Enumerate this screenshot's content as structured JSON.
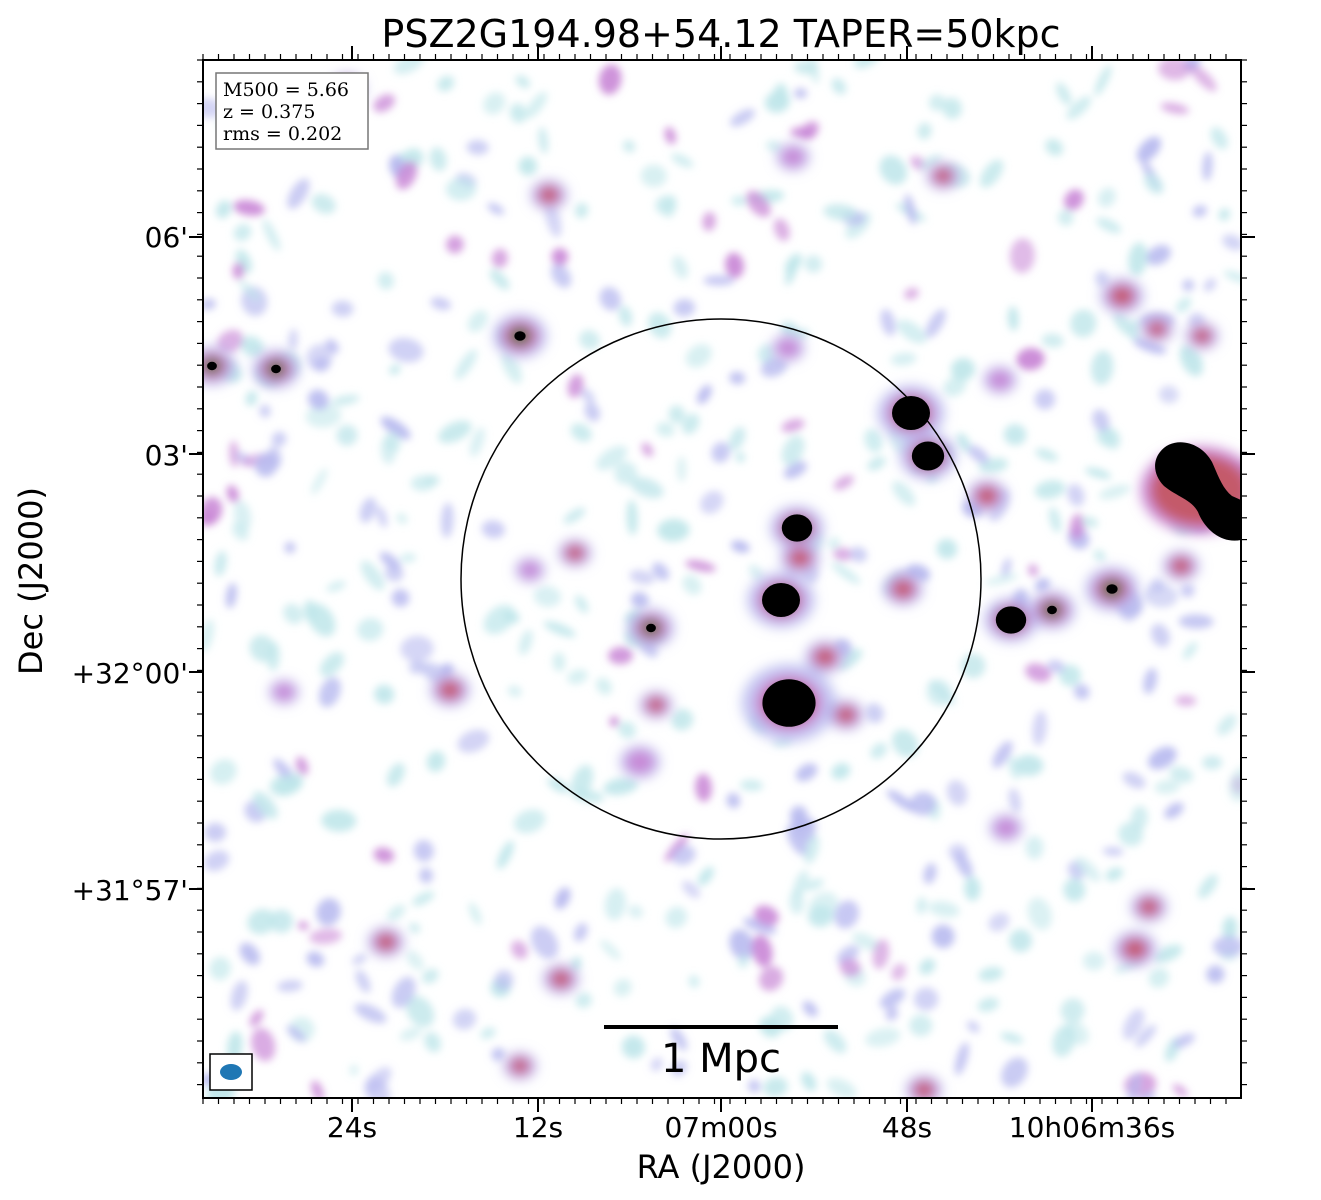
{
  "title": "PSZ2G194.98+54.12 TAPER=50kpc",
  "info_box": {
    "lines": [
      "M500 = 5.66",
      "z = 0.375",
      "rms = 0.202"
    ]
  },
  "axes": {
    "xlabel": "RA (J2000)",
    "ylabel": "Dec (J2000)",
    "x_ticks": [
      "24s",
      "12s",
      "07m00s",
      "48s",
      "10h06m36s"
    ],
    "y_ticks": [
      "06'",
      "03'",
      "+32°00'",
      "+31°57'"
    ]
  },
  "scale_bar": {
    "label": "1 Mpc"
  },
  "colors": {
    "faint": "#bfe6ea",
    "low": "#b7b9ef",
    "mid": "#c987d6",
    "high": "#c45a6a",
    "peak": "#2f7a4e",
    "core": "#000000",
    "beam": "#1f77b4"
  }
}
